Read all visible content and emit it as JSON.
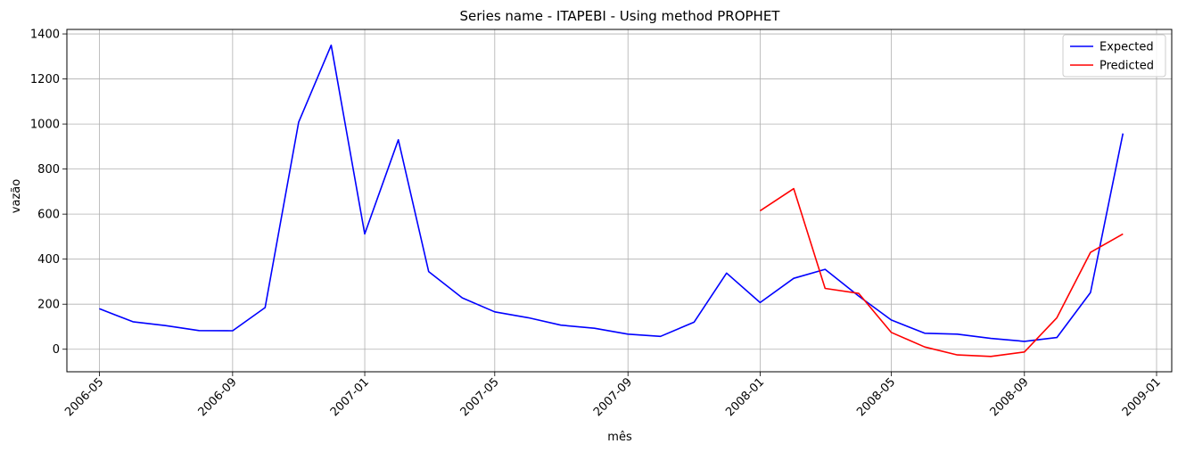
{
  "chart_data": {
    "type": "line",
    "title": "Series name - ITAPEBI - Using method PROPHET",
    "xlabel": "mês",
    "ylabel": "vazão",
    "grid": true,
    "legend_position": "top-right",
    "xlim": [
      "2006-04-01",
      "2009-01-15"
    ],
    "ylim": [
      -100,
      1420
    ],
    "x_ticks": [
      "2006-05",
      "2006-09",
      "2007-01",
      "2007-05",
      "2007-09",
      "2008-01",
      "2008-05",
      "2008-09",
      "2009-01"
    ],
    "y_ticks": [
      0,
      200,
      400,
      600,
      800,
      1000,
      1200,
      1400
    ],
    "series": [
      {
        "name": "Expected",
        "color": "#0000ff",
        "x": [
          "2006-05-01",
          "2006-06-01",
          "2006-07-01",
          "2006-08-01",
          "2006-09-01",
          "2006-10-01",
          "2006-11-01",
          "2006-12-01",
          "2007-01-01",
          "2007-02-01",
          "2007-03-01",
          "2007-04-01",
          "2007-05-01",
          "2007-06-01",
          "2007-07-01",
          "2007-08-01",
          "2007-09-01",
          "2007-10-01",
          "2007-11-01",
          "2007-12-01",
          "2008-01-01",
          "2008-02-01",
          "2008-03-01",
          "2008-04-01",
          "2008-05-01",
          "2008-06-01",
          "2008-07-01",
          "2008-08-01",
          "2008-09-01",
          "2008-10-01",
          "2008-11-01",
          "2008-12-01"
        ],
        "values": [
          180,
          122,
          105,
          83,
          82,
          185,
          1008,
          1350,
          512,
          930,
          345,
          228,
          166,
          140,
          107,
          93,
          67,
          57,
          120,
          338,
          207,
          315,
          355,
          236,
          130,
          71,
          67,
          48,
          35,
          52,
          252,
          958
        ]
      },
      {
        "name": "Predicted",
        "color": "#ff0000",
        "x": [
          "2008-01-01",
          "2008-02-01",
          "2008-03-01",
          "2008-04-01",
          "2008-05-01",
          "2008-06-01",
          "2008-07-01",
          "2008-08-01",
          "2008-09-01",
          "2008-10-01",
          "2008-11-01",
          "2008-12-01"
        ],
        "values": [
          615,
          713,
          270,
          248,
          75,
          10,
          -25,
          -32,
          -12,
          140,
          430,
          512
        ]
      }
    ]
  }
}
